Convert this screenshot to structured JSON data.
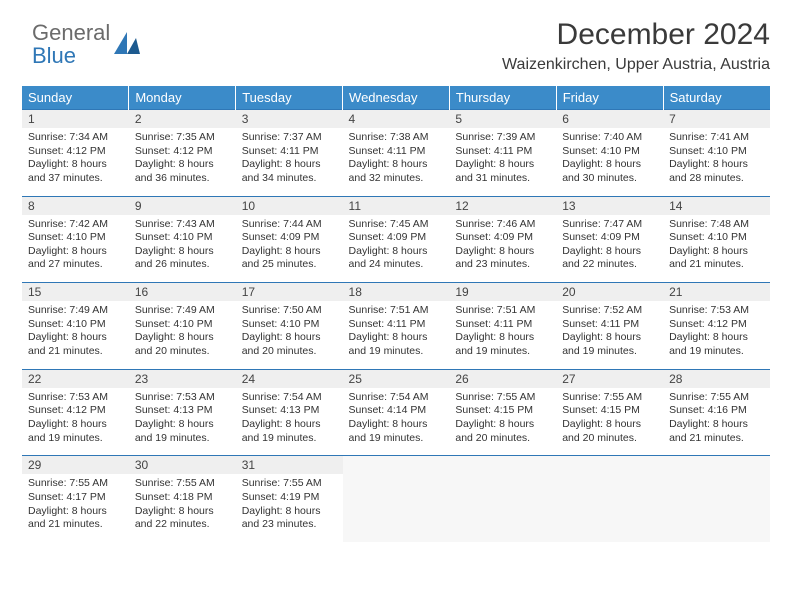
{
  "logo": {
    "general": "General",
    "blue": "Blue"
  },
  "title": "December 2024",
  "location": "Waizenkirchen, Upper Austria, Austria",
  "colors": {
    "header_bg": "#3b8bc9",
    "header_text": "#ffffff",
    "daynum_bg": "#efefef",
    "border": "#2f77b6",
    "logo_gray": "#6b6b6b",
    "logo_blue": "#2f77b6"
  },
  "weekdays": [
    "Sunday",
    "Monday",
    "Tuesday",
    "Wednesday",
    "Thursday",
    "Friday",
    "Saturday"
  ],
  "weeks": [
    [
      {
        "n": "1",
        "sr": "Sunrise: 7:34 AM",
        "ss": "Sunset: 4:12 PM",
        "d1": "Daylight: 8 hours",
        "d2": "and 37 minutes."
      },
      {
        "n": "2",
        "sr": "Sunrise: 7:35 AM",
        "ss": "Sunset: 4:12 PM",
        "d1": "Daylight: 8 hours",
        "d2": "and 36 minutes."
      },
      {
        "n": "3",
        "sr": "Sunrise: 7:37 AM",
        "ss": "Sunset: 4:11 PM",
        "d1": "Daylight: 8 hours",
        "d2": "and 34 minutes."
      },
      {
        "n": "4",
        "sr": "Sunrise: 7:38 AM",
        "ss": "Sunset: 4:11 PM",
        "d1": "Daylight: 8 hours",
        "d2": "and 32 minutes."
      },
      {
        "n": "5",
        "sr": "Sunrise: 7:39 AM",
        "ss": "Sunset: 4:11 PM",
        "d1": "Daylight: 8 hours",
        "d2": "and 31 minutes."
      },
      {
        "n": "6",
        "sr": "Sunrise: 7:40 AM",
        "ss": "Sunset: 4:10 PM",
        "d1": "Daylight: 8 hours",
        "d2": "and 30 minutes."
      },
      {
        "n": "7",
        "sr": "Sunrise: 7:41 AM",
        "ss": "Sunset: 4:10 PM",
        "d1": "Daylight: 8 hours",
        "d2": "and 28 minutes."
      }
    ],
    [
      {
        "n": "8",
        "sr": "Sunrise: 7:42 AM",
        "ss": "Sunset: 4:10 PM",
        "d1": "Daylight: 8 hours",
        "d2": "and 27 minutes."
      },
      {
        "n": "9",
        "sr": "Sunrise: 7:43 AM",
        "ss": "Sunset: 4:10 PM",
        "d1": "Daylight: 8 hours",
        "d2": "and 26 minutes."
      },
      {
        "n": "10",
        "sr": "Sunrise: 7:44 AM",
        "ss": "Sunset: 4:09 PM",
        "d1": "Daylight: 8 hours",
        "d2": "and 25 minutes."
      },
      {
        "n": "11",
        "sr": "Sunrise: 7:45 AM",
        "ss": "Sunset: 4:09 PM",
        "d1": "Daylight: 8 hours",
        "d2": "and 24 minutes."
      },
      {
        "n": "12",
        "sr": "Sunrise: 7:46 AM",
        "ss": "Sunset: 4:09 PM",
        "d1": "Daylight: 8 hours",
        "d2": "and 23 minutes."
      },
      {
        "n": "13",
        "sr": "Sunrise: 7:47 AM",
        "ss": "Sunset: 4:09 PM",
        "d1": "Daylight: 8 hours",
        "d2": "and 22 minutes."
      },
      {
        "n": "14",
        "sr": "Sunrise: 7:48 AM",
        "ss": "Sunset: 4:10 PM",
        "d1": "Daylight: 8 hours",
        "d2": "and 21 minutes."
      }
    ],
    [
      {
        "n": "15",
        "sr": "Sunrise: 7:49 AM",
        "ss": "Sunset: 4:10 PM",
        "d1": "Daylight: 8 hours",
        "d2": "and 21 minutes."
      },
      {
        "n": "16",
        "sr": "Sunrise: 7:49 AM",
        "ss": "Sunset: 4:10 PM",
        "d1": "Daylight: 8 hours",
        "d2": "and 20 minutes."
      },
      {
        "n": "17",
        "sr": "Sunrise: 7:50 AM",
        "ss": "Sunset: 4:10 PM",
        "d1": "Daylight: 8 hours",
        "d2": "and 20 minutes."
      },
      {
        "n": "18",
        "sr": "Sunrise: 7:51 AM",
        "ss": "Sunset: 4:11 PM",
        "d1": "Daylight: 8 hours",
        "d2": "and 19 minutes."
      },
      {
        "n": "19",
        "sr": "Sunrise: 7:51 AM",
        "ss": "Sunset: 4:11 PM",
        "d1": "Daylight: 8 hours",
        "d2": "and 19 minutes."
      },
      {
        "n": "20",
        "sr": "Sunrise: 7:52 AM",
        "ss": "Sunset: 4:11 PM",
        "d1": "Daylight: 8 hours",
        "d2": "and 19 minutes."
      },
      {
        "n": "21",
        "sr": "Sunrise: 7:53 AM",
        "ss": "Sunset: 4:12 PM",
        "d1": "Daylight: 8 hours",
        "d2": "and 19 minutes."
      }
    ],
    [
      {
        "n": "22",
        "sr": "Sunrise: 7:53 AM",
        "ss": "Sunset: 4:12 PM",
        "d1": "Daylight: 8 hours",
        "d2": "and 19 minutes."
      },
      {
        "n": "23",
        "sr": "Sunrise: 7:53 AM",
        "ss": "Sunset: 4:13 PM",
        "d1": "Daylight: 8 hours",
        "d2": "and 19 minutes."
      },
      {
        "n": "24",
        "sr": "Sunrise: 7:54 AM",
        "ss": "Sunset: 4:13 PM",
        "d1": "Daylight: 8 hours",
        "d2": "and 19 minutes."
      },
      {
        "n": "25",
        "sr": "Sunrise: 7:54 AM",
        "ss": "Sunset: 4:14 PM",
        "d1": "Daylight: 8 hours",
        "d2": "and 19 minutes."
      },
      {
        "n": "26",
        "sr": "Sunrise: 7:55 AM",
        "ss": "Sunset: 4:15 PM",
        "d1": "Daylight: 8 hours",
        "d2": "and 20 minutes."
      },
      {
        "n": "27",
        "sr": "Sunrise: 7:55 AM",
        "ss": "Sunset: 4:15 PM",
        "d1": "Daylight: 8 hours",
        "d2": "and 20 minutes."
      },
      {
        "n": "28",
        "sr": "Sunrise: 7:55 AM",
        "ss": "Sunset: 4:16 PM",
        "d1": "Daylight: 8 hours",
        "d2": "and 21 minutes."
      }
    ],
    [
      {
        "n": "29",
        "sr": "Sunrise: 7:55 AM",
        "ss": "Sunset: 4:17 PM",
        "d1": "Daylight: 8 hours",
        "d2": "and 21 minutes."
      },
      {
        "n": "30",
        "sr": "Sunrise: 7:55 AM",
        "ss": "Sunset: 4:18 PM",
        "d1": "Daylight: 8 hours",
        "d2": "and 22 minutes."
      },
      {
        "n": "31",
        "sr": "Sunrise: 7:55 AM",
        "ss": "Sunset: 4:19 PM",
        "d1": "Daylight: 8 hours",
        "d2": "and 23 minutes."
      },
      null,
      null,
      null,
      null
    ]
  ]
}
